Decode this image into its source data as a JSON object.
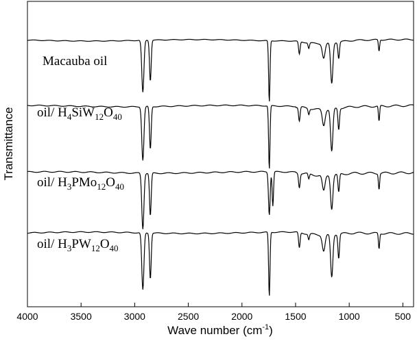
{
  "chart_data": {
    "type": "line",
    "title": "",
    "xlabel": "Wave number (cm",
    "xlabel_sup": "-1",
    "xlabel_tail": ")",
    "ylabel": "Transmittance",
    "xlim": [
      4000,
      400
    ],
    "x_reversed": true,
    "x_ticks": [
      4000,
      3500,
      3000,
      2500,
      2000,
      1500,
      1000,
      500
    ],
    "grid": false,
    "legend": "none",
    "line_color": "#000000",
    "series": [
      {
        "name": "Macauba oil",
        "label_parts": [
          {
            "t": "Macauba oil",
            "sub": false
          }
        ],
        "baseline": 0.915,
        "wiggle": 0.004,
        "features": [
          {
            "x": 2924,
            "depth": 0.73,
            "width": 14
          },
          {
            "x": 2854,
            "depth": 0.57,
            "width": 11
          },
          {
            "x": 1745,
            "depth": 0.86,
            "width": 9
          },
          {
            "x": 1465,
            "depth": 0.18,
            "width": 10
          },
          {
            "x": 1377,
            "depth": 0.08,
            "width": 9
          },
          {
            "x": 1238,
            "depth": 0.2,
            "width": 18
          },
          {
            "x": 1163,
            "depth": 0.57,
            "width": 15
          },
          {
            "x": 1098,
            "depth": 0.23,
            "width": 10
          },
          {
            "x": 722,
            "depth": 0.16,
            "width": 8
          }
        ]
      },
      {
        "name": "oil/ H4SiW12O40",
        "label_parts": [
          {
            "t": "oil/ H",
            "sub": false
          },
          {
            "t": "4",
            "sub": true
          },
          {
            "t": "SiW",
            "sub": false
          },
          {
            "t": "12",
            "sub": true
          },
          {
            "t": "O",
            "sub": false
          },
          {
            "t": "40",
            "sub": true
          }
        ],
        "baseline": 0.905,
        "wiggle": 0.006,
        "features": [
          {
            "x": 2924,
            "depth": 0.75,
            "width": 14
          },
          {
            "x": 2854,
            "depth": 0.6,
            "width": 11
          },
          {
            "x": 1745,
            "depth": 0.89,
            "width": 9
          },
          {
            "x": 1465,
            "depth": 0.2,
            "width": 10
          },
          {
            "x": 1377,
            "depth": 0.08,
            "width": 9
          },
          {
            "x": 1238,
            "depth": 0.22,
            "width": 18
          },
          {
            "x": 1163,
            "depth": 0.6,
            "width": 15
          },
          {
            "x": 1098,
            "depth": 0.3,
            "width": 10
          },
          {
            "x": 722,
            "depth": 0.22,
            "width": 8
          }
        ]
      },
      {
        "name": "oil/ H3PMo12O40",
        "label_parts": [
          {
            "t": "oil/ H",
            "sub": false
          },
          {
            "t": "3",
            "sub": true
          },
          {
            "t": "PMo",
            "sub": false
          },
          {
            "t": "12",
            "sub": true
          },
          {
            "t": "O",
            "sub": false
          },
          {
            "t": "40",
            "sub": true
          }
        ],
        "baseline": 0.905,
        "wiggle": 0.007,
        "features": [
          {
            "x": 2924,
            "depth": 0.78,
            "width": 14
          },
          {
            "x": 2854,
            "depth": 0.6,
            "width": 11
          },
          {
            "x": 1745,
            "depth": 0.6,
            "width": 11
          },
          {
            "x": 1712,
            "depth": 0.48,
            "width": 9
          },
          {
            "x": 1465,
            "depth": 0.2,
            "width": 10
          },
          {
            "x": 1377,
            "depth": 0.08,
            "width": 9
          },
          {
            "x": 1238,
            "depth": 0.22,
            "width": 18
          },
          {
            "x": 1163,
            "depth": 0.47,
            "width": 15
          },
          {
            "x": 1098,
            "depth": 0.26,
            "width": 10
          },
          {
            "x": 722,
            "depth": 0.22,
            "width": 8
          }
        ]
      },
      {
        "name": "oil/ H3PW12O40",
        "label_parts": [
          {
            "t": "oil/ H",
            "sub": false
          },
          {
            "t": "3",
            "sub": true
          },
          {
            "t": "PW",
            "sub": false
          },
          {
            "t": "12",
            "sub": true
          },
          {
            "t": "O",
            "sub": false
          },
          {
            "t": "40",
            "sub": true
          }
        ],
        "baseline": 0.905,
        "wiggle": 0.006,
        "features": [
          {
            "x": 2924,
            "depth": 0.8,
            "width": 14
          },
          {
            "x": 2854,
            "depth": 0.64,
            "width": 11
          },
          {
            "x": 1745,
            "depth": 0.9,
            "width": 9
          },
          {
            "x": 1465,
            "depth": 0.22,
            "width": 10
          },
          {
            "x": 1377,
            "depth": 0.08,
            "width": 9
          },
          {
            "x": 1238,
            "depth": 0.22,
            "width": 18
          },
          {
            "x": 1163,
            "depth": 0.6,
            "width": 15
          },
          {
            "x": 1098,
            "depth": 0.34,
            "width": 10
          },
          {
            "x": 722,
            "depth": 0.22,
            "width": 8
          }
        ]
      }
    ]
  }
}
